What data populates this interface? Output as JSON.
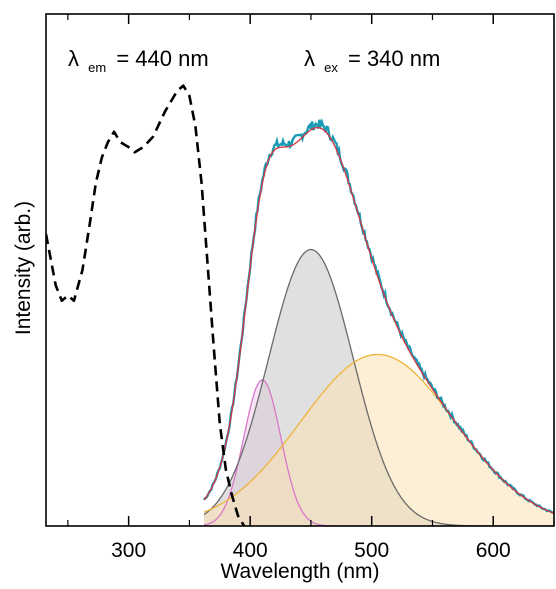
{
  "chart_data": {
    "type": "line",
    "title": "",
    "xlabel": "Wavelength (nm)",
    "ylabel": "Intensity (arb.)",
    "xlim": [
      232,
      650
    ],
    "ylim": [
      0,
      1.0
    ],
    "xticks": [
      300,
      400,
      500,
      600
    ],
    "xtick_labels": [
      "300",
      "400",
      "500",
      "600"
    ],
    "yticks_shown": false,
    "grid": false,
    "annotations": [
      {
        "symbol": "λ",
        "subscript": "em",
        "text": "= 440 nm"
      },
      {
        "symbol": "λ",
        "subscript": "ex",
        "text": "= 340 nm"
      }
    ],
    "excitation": {
      "style": "black dashed",
      "color": "#000000",
      "points": [
        [
          232,
          0.57
        ],
        [
          236,
          0.52
        ],
        [
          240,
          0.47
        ],
        [
          245,
          0.44
        ],
        [
          250,
          0.45
        ],
        [
          255,
          0.44
        ],
        [
          262,
          0.5
        ],
        [
          268,
          0.59
        ],
        [
          273,
          0.67
        ],
        [
          278,
          0.72
        ],
        [
          283,
          0.75
        ],
        [
          288,
          0.77
        ],
        [
          293,
          0.75
        ],
        [
          300,
          0.74
        ],
        [
          305,
          0.73
        ],
        [
          312,
          0.74
        ],
        [
          320,
          0.76
        ],
        [
          330,
          0.81
        ],
        [
          340,
          0.85
        ],
        [
          345,
          0.86
        ],
        [
          350,
          0.84
        ],
        [
          355,
          0.78
        ],
        [
          360,
          0.67
        ],
        [
          365,
          0.51
        ],
        [
          370,
          0.35
        ],
        [
          375,
          0.2
        ],
        [
          380,
          0.11
        ],
        [
          385,
          0.06
        ],
        [
          390,
          0.02
        ],
        [
          395,
          0.0
        ]
      ]
    },
    "emission": {
      "data_color": "#1a9bb5",
      "fit_color": "#d4343f",
      "x_range": [
        362,
        650
      ],
      "components": [
        {
          "color": "#d977c9",
          "fill": "#f2cdee",
          "center": 410,
          "fwhm": 36,
          "amplitude": 0.285
        },
        {
          "color": "#6b6b6b",
          "fill": "#c6c6c6",
          "center": 450,
          "fwhm": 82,
          "amplitude": 0.54
        },
        {
          "color": "#f0b43a",
          "fill": "#fbe2b2",
          "center": 505,
          "fwhm": 150,
          "amplitude": 0.335
        }
      ]
    }
  }
}
